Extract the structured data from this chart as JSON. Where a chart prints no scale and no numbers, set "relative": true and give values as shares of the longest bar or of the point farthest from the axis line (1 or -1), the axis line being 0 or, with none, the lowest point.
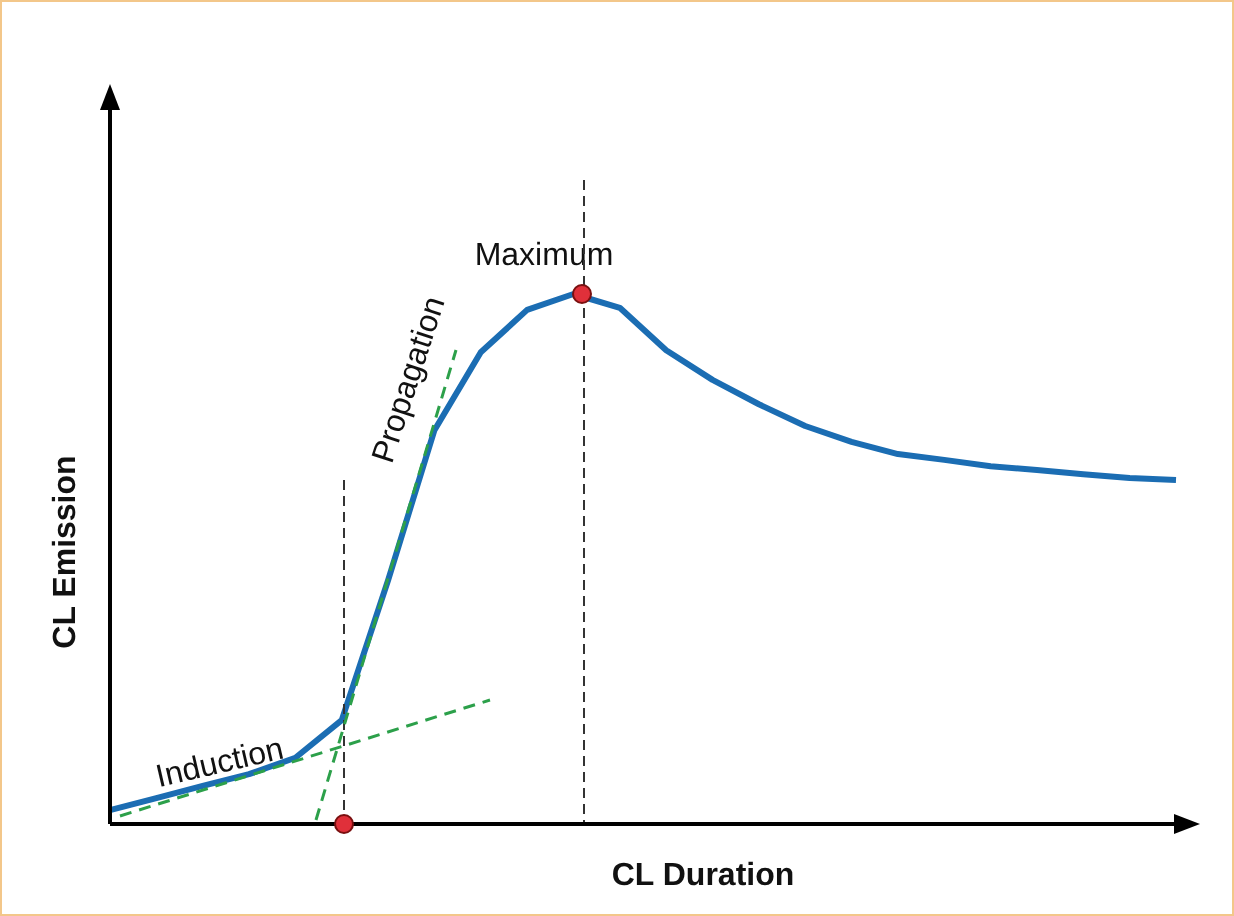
{
  "chart_data": {
    "type": "line",
    "relative": true,
    "xlabel": "CL Duration",
    "ylabel": "CL Emission",
    "marker": "none",
    "categories": [
      null,
      null,
      null,
      null,
      null,
      null,
      null,
      null,
      null,
      null,
      null,
      null,
      null,
      null,
      null,
      null,
      null,
      null,
      null,
      null,
      null,
      null,
      null,
      null
    ],
    "series": [
      {
        "color": "#1b6db3",
        "values": [
          0.026,
          0.049,
          0.072,
          0.094,
          0.125,
          0.196,
          0.46,
          0.743,
          0.89,
          0.97,
          1,
          0.974,
          0.894,
          0.838,
          0.792,
          0.751,
          0.721,
          0.698,
          0.687,
          0.675,
          0.668,
          0.66,
          0.653,
          0.649
        ]
      }
    ],
    "annotations": [
      "Maximum",
      "Propagation",
      "Induction"
    ]
  }
}
